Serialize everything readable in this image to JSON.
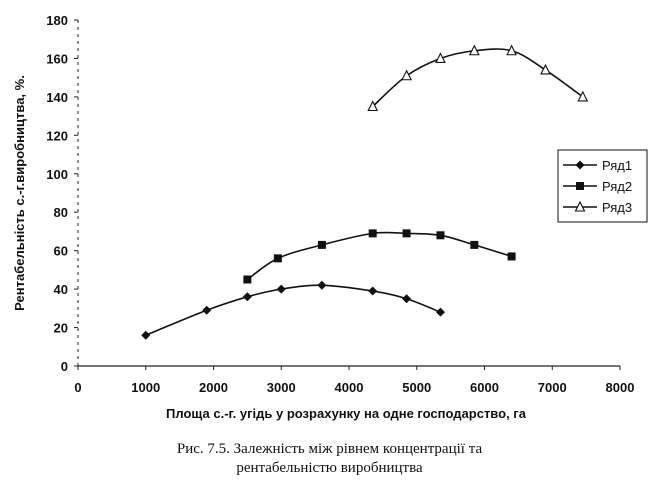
{
  "chart_data": {
    "type": "line",
    "title": "",
    "xlabel": "Площа с.-г. угідь у розрахунку на одне господарство, га",
    "ylabel": "Рентабельність с.-г.виробництва, %.",
    "xlim": [
      0,
      8000
    ],
    "ylim": [
      0,
      180
    ],
    "xticks": [
      "0",
      "1000",
      "2000",
      "3000",
      "4000",
      "5000",
      "6000",
      "7000",
      "8000"
    ],
    "yticks": [
      "0",
      "20",
      "40",
      "60",
      "80",
      "100",
      "120",
      "140",
      "160",
      "180"
    ],
    "grid": false,
    "legend_position": "right",
    "series": [
      {
        "name": "Ряд1",
        "marker": "diamond",
        "color": "#111111",
        "x": [
          1000,
          1900,
          2500,
          3000,
          3600,
          4350,
          4850,
          5350
        ],
        "y": [
          16,
          29,
          36,
          40,
          42,
          39,
          35,
          28
        ]
      },
      {
        "name": "Ряд2",
        "marker": "square",
        "color": "#111111",
        "x": [
          2500,
          2950,
          3600,
          4350,
          4850,
          5350,
          5850,
          6400
        ],
        "y": [
          45,
          56,
          63,
          69,
          69,
          68,
          63,
          57
        ]
      },
      {
        "name": "Ряд3",
        "marker": "triangle-open",
        "color": "#111111",
        "x": [
          4350,
          4850,
          5350,
          5850,
          6400,
          6900,
          7450
        ],
        "y": [
          135,
          151,
          160,
          164,
          164,
          154,
          140
        ]
      }
    ]
  },
  "caption": {
    "line1": "Рис. 7.5. Залежність між рівнем концентрації та",
    "line2": "рентабельністю виробництва"
  }
}
